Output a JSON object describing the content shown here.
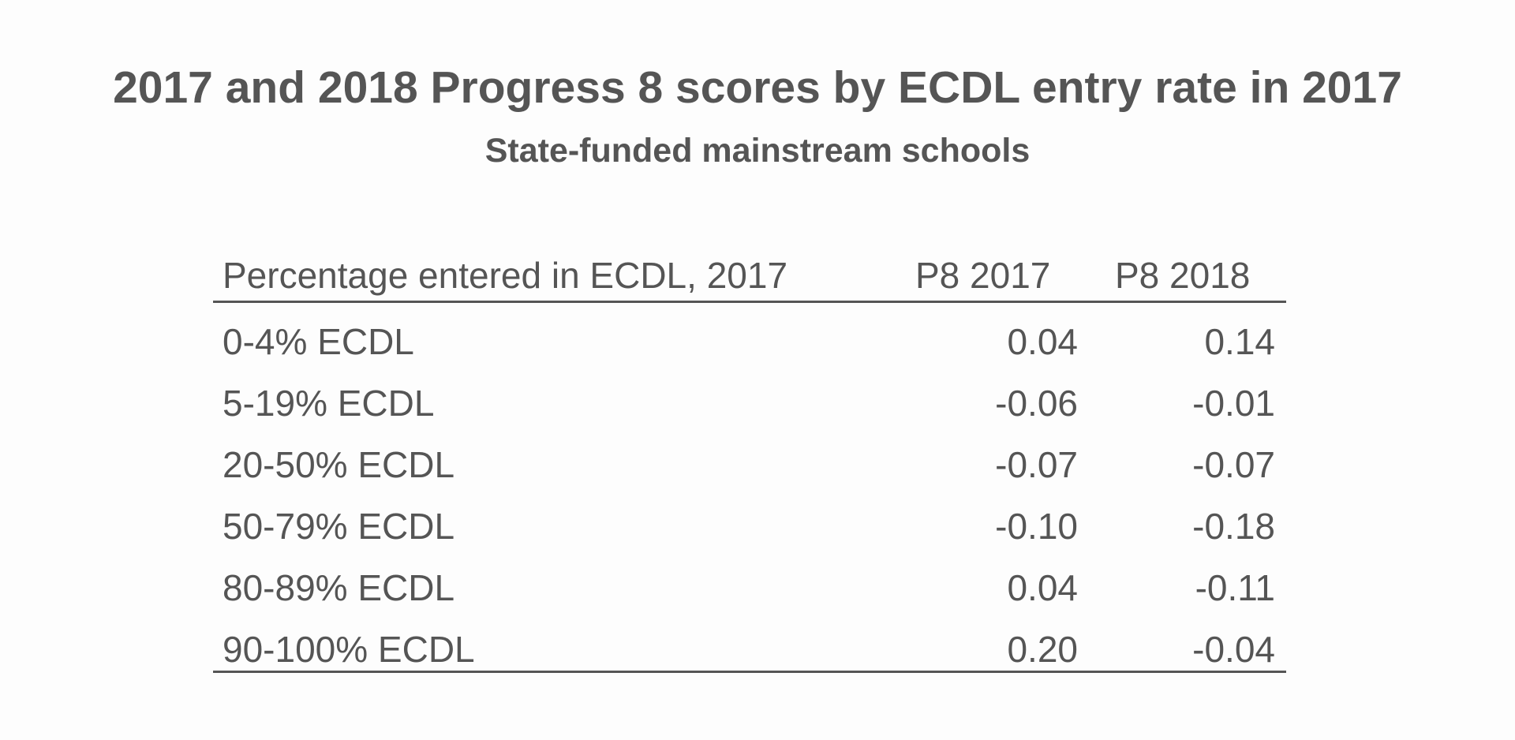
{
  "title": "2017 and 2018 Progress 8 scores by ECDL entry rate in 2017",
  "subtitle": "State-funded mainstream schools",
  "table": {
    "columns": [
      "Percentage entered in ECDL, 2017",
      "P8 2017",
      "P8 2018"
    ],
    "rows": [
      {
        "label": "0-4% ECDL",
        "p8_2017": "0.04",
        "p8_2018": "0.14"
      },
      {
        "label": "5-19% ECDL",
        "p8_2017": "-0.06",
        "p8_2018": "-0.01"
      },
      {
        "label": "20-50% ECDL",
        "p8_2017": "-0.07",
        "p8_2018": "-0.07"
      },
      {
        "label": "50-79% ECDL",
        "p8_2017": "-0.10",
        "p8_2018": "-0.18"
      },
      {
        "label": "80-89% ECDL",
        "p8_2017": "0.04",
        "p8_2018": "-0.11"
      },
      {
        "label": "90-100% ECDL",
        "p8_2017": "0.20",
        "p8_2018": "-0.04"
      }
    ]
  },
  "colors": {
    "text": "#555555",
    "rule": "#555555",
    "background": "#fdfdfd"
  }
}
